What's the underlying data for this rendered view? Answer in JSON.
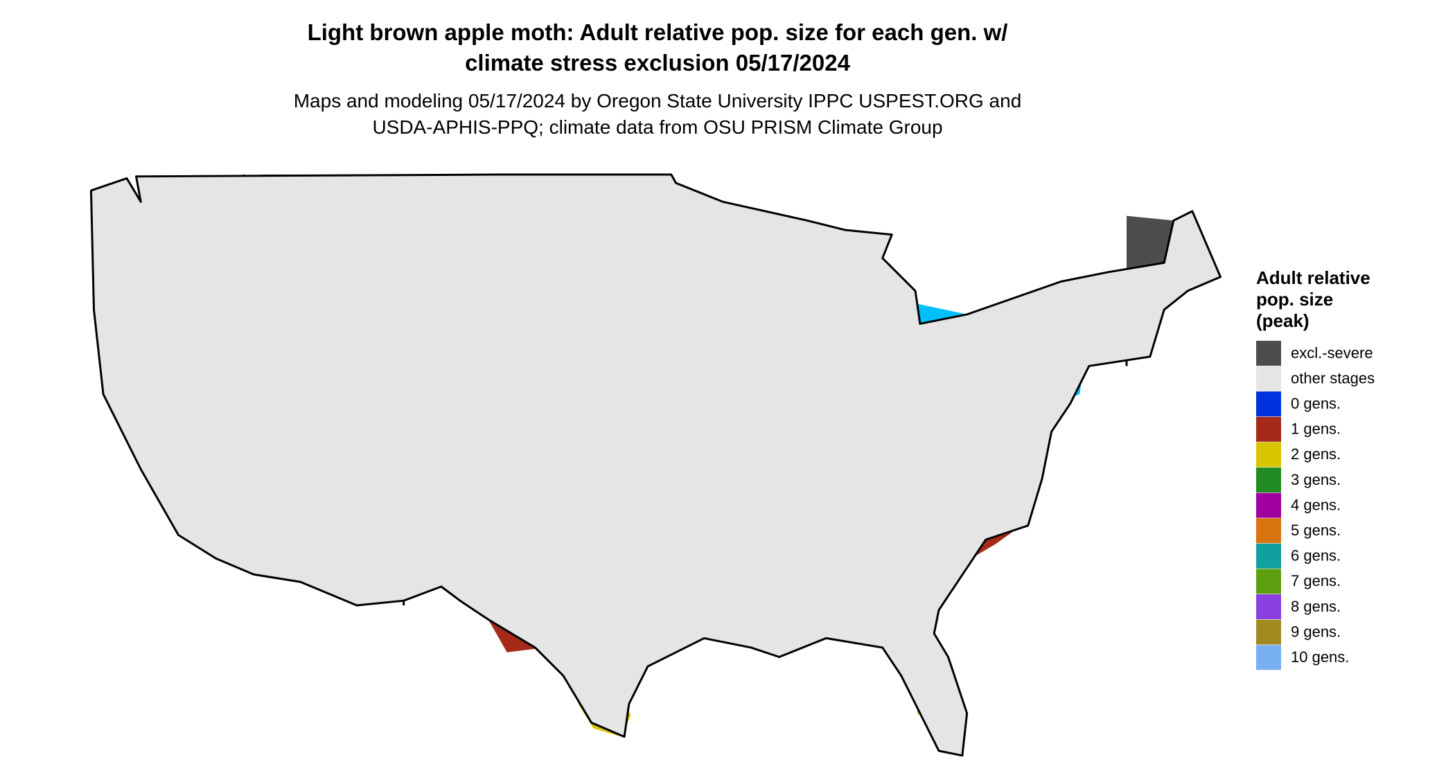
{
  "title": [
    "Light brown apple moth: Adult relative pop. size for each gen. w/",
    "climate stress exclusion 05/17/2024"
  ],
  "subtitle": [
    "Maps and modeling 05/17/2024 by Oregon State University IPPC USPEST.ORG and",
    "USDA-APHIS-PPQ; climate data from OSU PRISM Climate Group"
  ],
  "legend": {
    "title": [
      "Adult relative",
      "pop. size",
      "(peak)"
    ],
    "items": [
      {
        "label": "excl.-severe",
        "color": "#4d4d4d"
      },
      {
        "label": "other stages",
        "color": "#e5e5e5"
      },
      {
        "label": "0 gens.",
        "color": "#0033dd"
      },
      {
        "label": "1 gens.",
        "color": "#a52a1a"
      },
      {
        "label": "2 gens.",
        "color": "#d9c400"
      },
      {
        "label": "3 gens.",
        "color": "#228b22"
      },
      {
        "label": "4 gens.",
        "color": "#a000a0"
      },
      {
        "label": "5 gens.",
        "color": "#d97510"
      },
      {
        "label": "6 gens.",
        "color": "#10a0a0"
      },
      {
        "label": "7 gens.",
        "color": "#5ca010"
      },
      {
        "label": "8 gens.",
        "color": "#8a40e0"
      },
      {
        "label": "9 gens.",
        "color": "#a08a20"
      },
      {
        "label": "10 gens.",
        "color": "#78b0f0"
      }
    ]
  }
}
